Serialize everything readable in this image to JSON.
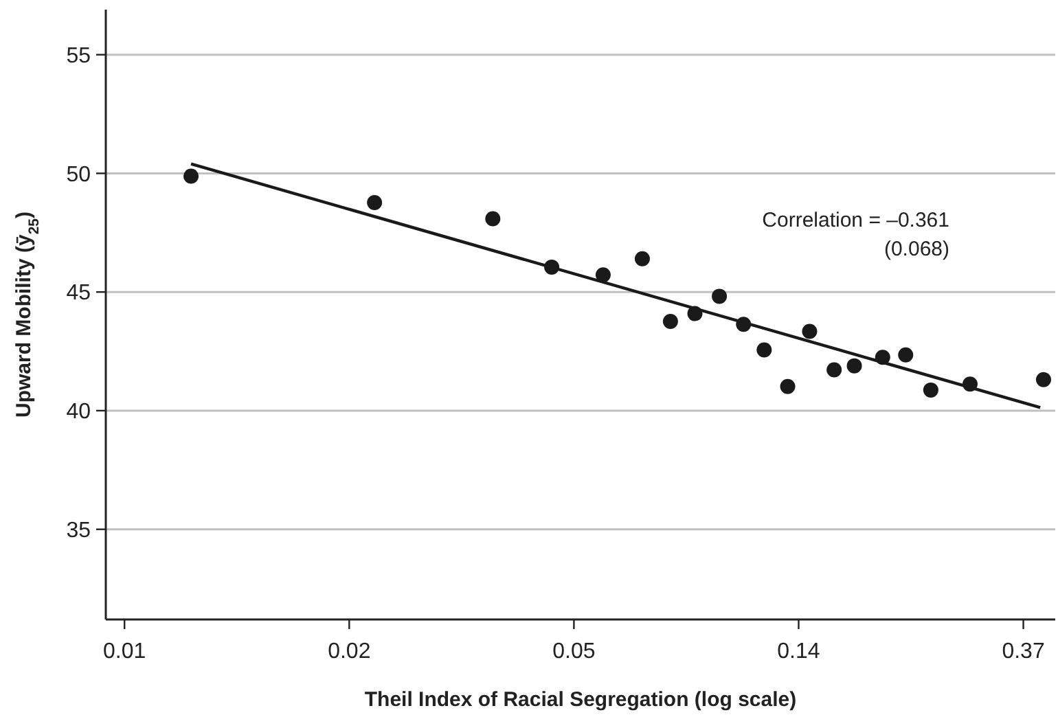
{
  "chart_data": {
    "type": "scatter",
    "xlabel": "Theil Index of Racial Segregation (log scale)",
    "ylabel": "Upward Mobility (ȳ$_{25}$)",
    "log": "x",
    "xlim": [
      0.0062,
      0.424
    ],
    "ylim": [
      31.2,
      56.9
    ],
    "xticks": [
      {
        "value": 0.006738,
        "label": "0.01"
      },
      {
        "value": 0.018316,
        "label": "0.02"
      },
      {
        "value": 0.049787,
        "label": "0.05"
      },
      {
        "value": 0.135335,
        "label": "0.14"
      },
      {
        "value": 0.367879,
        "label": "0.37"
      }
    ],
    "yticks": [
      35,
      40,
      45,
      50,
      55
    ],
    "grid": "y",
    "marker": "circle",
    "annotations": [
      "Correlation = –0.361\n(0.068)"
    ],
    "series": [
      {
        "type": "scatter",
        "color": "#1a1a1a",
        "x": [
          0.00906,
          0.0205,
          0.0347,
          0.0451,
          0.0567,
          0.0675,
          0.0765,
          0.0853,
          0.0951,
          0.1059,
          0.1161,
          0.1289,
          0.1421,
          0.1585,
          0.1734,
          0.1967,
          0.2179,
          0.2437,
          0.2902,
          0.4025
        ],
        "values": [
          49.88,
          48.77,
          48.09,
          46.05,
          45.72,
          46.4,
          43.76,
          44.09,
          44.82,
          43.64,
          42.56,
          41.02,
          43.34,
          41.72,
          41.89,
          42.25,
          42.35,
          40.87,
          41.12,
          41.31
        ]
      },
      {
        "type": "line",
        "color": "#1a1a1a",
        "line_style": "solid",
        "marker": "none",
        "x": [
          0.00906,
          0.3966
        ],
        "values": [
          50.4,
          40.13
        ]
      }
    ]
  }
}
